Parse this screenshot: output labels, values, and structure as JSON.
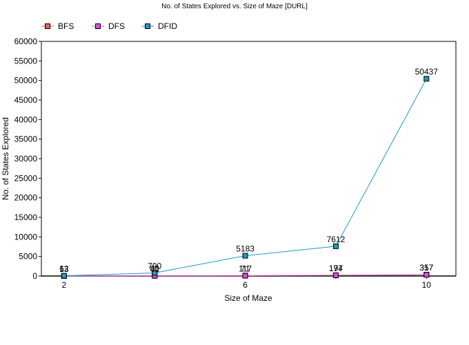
{
  "chart_data": {
    "type": "line",
    "title": "No. of States Explored vs. Size of Maze [DURL]",
    "xlabel": "Size of Maze",
    "ylabel": "No. of States Explored",
    "x": [
      2,
      4,
      6,
      8,
      10
    ],
    "x_tick_labels": [
      "2",
      "",
      "6",
      "",
      "10"
    ],
    "xlim": [
      1.5,
      10.65
    ],
    "ylim": [
      0,
      60000
    ],
    "y_ticks": [
      0,
      5000,
      10000,
      15000,
      20000,
      25000,
      30000,
      35000,
      40000,
      45000,
      50000,
      55000,
      60000
    ],
    "grid": false,
    "legend_position": "top-left",
    "series": [
      {
        "name": "BFS",
        "color": "#e8684a",
        "values": [
          13,
          80,
          117,
          197,
          357
        ]
      },
      {
        "name": "DFS",
        "color": "#d94fd9",
        "values": [
          13,
          41,
          71,
          174,
          317
        ]
      },
      {
        "name": "DFID",
        "color": "#1a9bc2",
        "values": [
          62,
          790,
          5183,
          7612,
          50437
        ]
      }
    ]
  }
}
